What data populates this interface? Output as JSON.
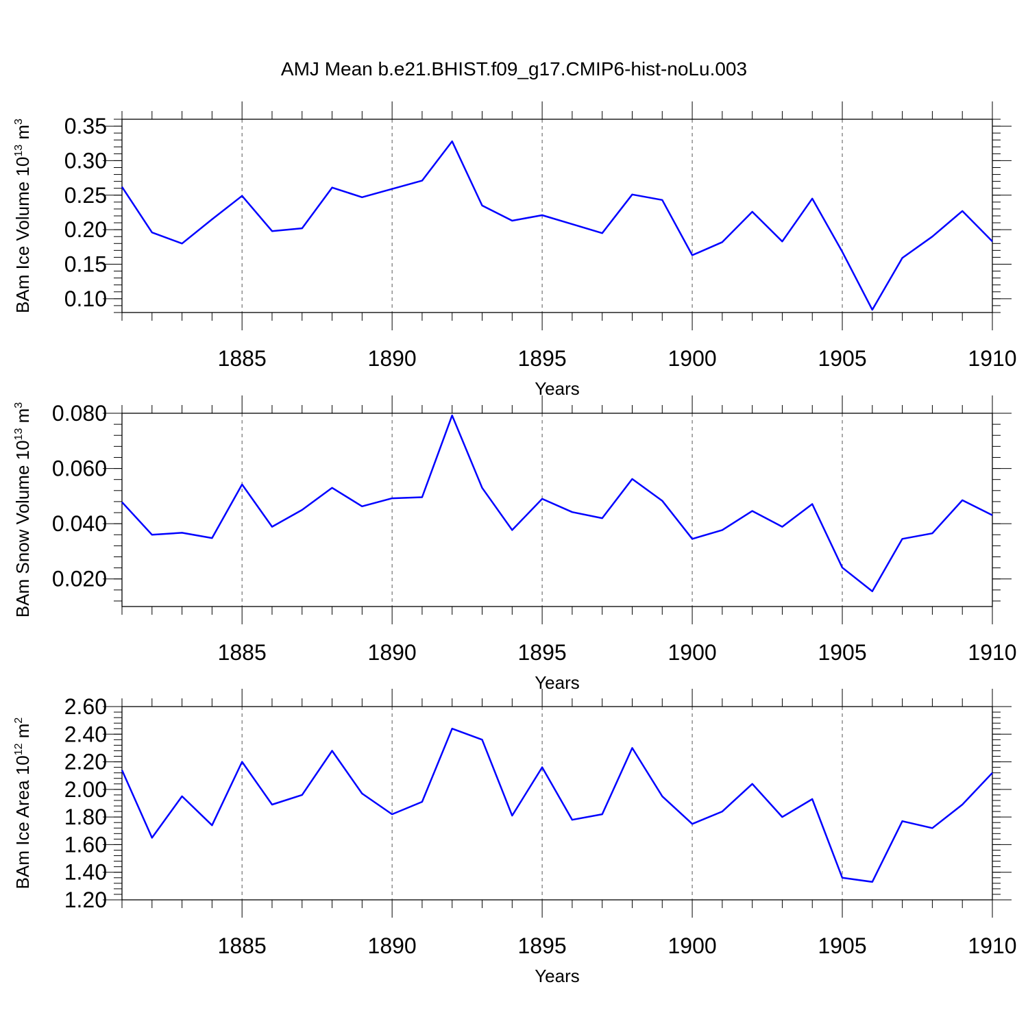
{
  "title": "AMJ Mean b.e21.BHIST.f09_g17.CMIP6-hist-noLu.003",
  "colors": {
    "line": "#0000ff",
    "axis": "#000000",
    "grid": "#555555"
  },
  "chart_data": [
    {
      "type": "line",
      "title": "AMJ Mean b.e21.BHIST.f09_g17.CMIP6-hist-noLu.003",
      "xlabel": "Years",
      "ylabel": "BAm Ice Volume 10",
      "ylabel_exp": "13",
      "ylabel_unit": " m",
      "ylabel_unit_exp": "3",
      "xlim": [
        1881,
        1910
      ],
      "ylim": [
        0.08,
        0.36
      ],
      "xticks": [
        1885,
        1890,
        1895,
        1900,
        1905,
        1910
      ],
      "yticks": [
        0.1,
        0.15,
        0.2,
        0.25,
        0.3,
        0.35
      ],
      "ytick_labels": [
        "0.10",
        "0.15",
        "0.20",
        "0.25",
        "0.30",
        "0.35"
      ],
      "x": [
        1881,
        1882,
        1883,
        1884,
        1885,
        1886,
        1887,
        1888,
        1889,
        1890,
        1891,
        1892,
        1893,
        1894,
        1895,
        1896,
        1897,
        1898,
        1899,
        1900,
        1901,
        1902,
        1903,
        1904,
        1905,
        1906,
        1907,
        1908,
        1909,
        1910
      ],
      "series": [
        {
          "name": "BAm Ice Volume",
          "values": [
            0.262,
            0.196,
            0.18,
            0.215,
            0.249,
            0.198,
            0.202,
            0.261,
            0.247,
            0.259,
            0.271,
            0.328,
            0.235,
            0.213,
            0.221,
            0.208,
            0.195,
            0.251,
            0.243,
            0.163,
            0.182,
            0.226,
            0.183,
            0.245,
            0.168,
            0.084,
            0.159,
            0.19,
            0.227,
            0.183
          ]
        }
      ]
    },
    {
      "type": "line",
      "xlabel": "Years",
      "ylabel": "BAm Snow Volume 10",
      "ylabel_exp": "13",
      "ylabel_unit": " m",
      "ylabel_unit_exp": "3",
      "xlim": [
        1881,
        1910
      ],
      "ylim": [
        0.01,
        0.08
      ],
      "xticks": [
        1885,
        1890,
        1895,
        1900,
        1905,
        1910
      ],
      "yticks": [
        0.02,
        0.04,
        0.06,
        0.08
      ],
      "ytick_labels": [
        "0.020",
        "0.040",
        "0.060",
        "0.080"
      ],
      "x": [
        1881,
        1882,
        1883,
        1884,
        1885,
        1886,
        1887,
        1888,
        1889,
        1890,
        1891,
        1892,
        1893,
        1894,
        1895,
        1896,
        1897,
        1898,
        1899,
        1900,
        1901,
        1902,
        1903,
        1904,
        1905,
        1906,
        1907,
        1908,
        1909,
        1910
      ],
      "series": [
        {
          "name": "BAm Snow Volume",
          "values": [
            0.0478,
            0.036,
            0.0367,
            0.0348,
            0.0542,
            0.0389,
            0.045,
            0.053,
            0.0463,
            0.0492,
            0.0496,
            0.0792,
            0.053,
            0.0377,
            0.049,
            0.0442,
            0.042,
            0.0562,
            0.0483,
            0.0345,
            0.0377,
            0.0446,
            0.0389,
            0.0471,
            0.0241,
            0.0155,
            0.0345,
            0.0365,
            0.0485,
            0.0431
          ]
        }
      ]
    },
    {
      "type": "line",
      "xlabel": "Years",
      "ylabel": "BAm Ice Area 10",
      "ylabel_exp": "12",
      "ylabel_unit": " m",
      "ylabel_unit_exp": "2",
      "xlim": [
        1881,
        1910
      ],
      "ylim": [
        1.2,
        2.6
      ],
      "xticks": [
        1885,
        1890,
        1895,
        1900,
        1905,
        1910
      ],
      "yticks": [
        1.2,
        1.4,
        1.6,
        1.8,
        2.0,
        2.2,
        2.4,
        2.6
      ],
      "ytick_labels": [
        "1.20",
        "1.40",
        "1.60",
        "1.80",
        "2.00",
        "2.20",
        "2.40",
        "2.60"
      ],
      "x": [
        1881,
        1882,
        1883,
        1884,
        1885,
        1886,
        1887,
        1888,
        1889,
        1890,
        1891,
        1892,
        1893,
        1894,
        1895,
        1896,
        1897,
        1898,
        1899,
        1900,
        1901,
        1902,
        1903,
        1904,
        1905,
        1906,
        1907,
        1908,
        1909,
        1910
      ],
      "series": [
        {
          "name": "BAm Ice Area",
          "values": [
            2.14,
            1.65,
            1.95,
            1.74,
            2.2,
            1.89,
            1.96,
            2.28,
            1.97,
            1.82,
            1.91,
            2.44,
            2.36,
            1.81,
            2.16,
            1.78,
            1.82,
            2.3,
            1.95,
            1.75,
            1.84,
            2.04,
            1.8,
            1.93,
            1.36,
            1.33,
            1.77,
            1.72,
            1.89,
            2.12
          ]
        }
      ]
    }
  ]
}
